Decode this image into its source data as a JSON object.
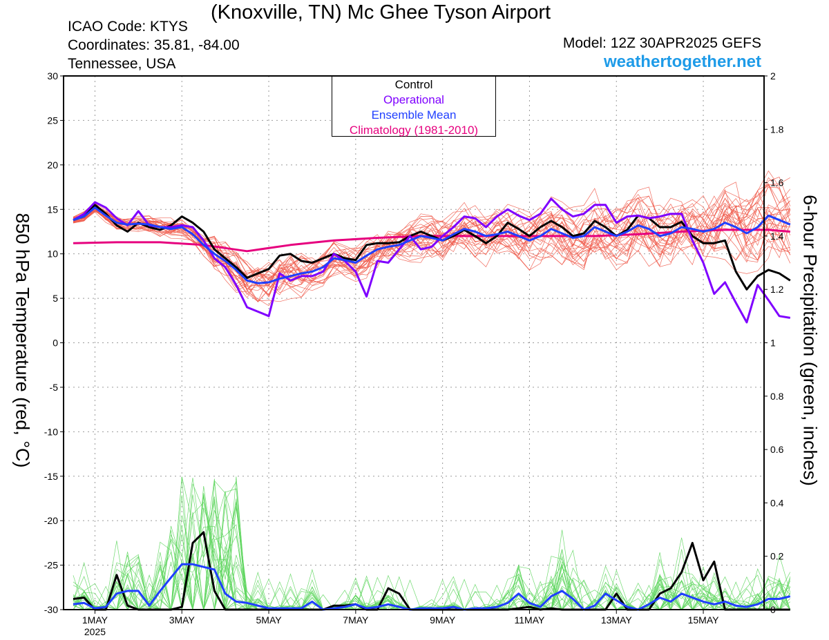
{
  "header": {
    "title": "(Knoxville, TN) Mc Ghee Tyson Airport",
    "icao": "ICAO Code: KTYS",
    "coordinates": "Coordinates: 35.81, -84.00",
    "region": "Tennessee, USA",
    "model": "Model: 12Z 30APR2025 GEFS",
    "site": "weathertogether.net"
  },
  "legend": {
    "entries": [
      {
        "label": "Control",
        "color": "#000000"
      },
      {
        "label": "Operational",
        "color": "#7f00ff"
      },
      {
        "label": "Ensemble Mean",
        "color": "#1f3fff"
      },
      {
        "label": "Climatology (1981-2010)",
        "color": "#e6007e"
      }
    ]
  },
  "chart_data": {
    "type": "line",
    "xlabel": "",
    "ylabel_left": "850 hPa Temperature (red, °C)",
    "ylabel_right": "6-hour Precipitation (green, inches)",
    "ylim_left": [
      -30,
      30
    ],
    "ylim_right": [
      0,
      2
    ],
    "yticks_left": [
      "30",
      "25",
      "20",
      "15",
      "10",
      "5",
      "0",
      "-5",
      "-10",
      "-15",
      "-20",
      "-25",
      "-30"
    ],
    "yticks_right": [
      "2",
      "1.8",
      "1.6",
      "1.4",
      "1.2",
      "1",
      "0.8",
      "0.6",
      "0.4",
      "0.2",
      "0"
    ],
    "x_tick_labels": [
      "1MAY",
      "3MAY",
      "5MAY",
      "7MAY",
      "9MAY",
      "11MAY",
      "13MAY",
      "15MAY"
    ],
    "x_tick_sublabel": "2025",
    "x_unit": "days since 30APR2025 12Z, 6-hourly",
    "x_range": [
      0,
      16.5
    ],
    "grid": true,
    "colors": {
      "members_temp": "#f05a4a",
      "members_precip": "#5fd65f",
      "control": "#000000",
      "operational": "#7f00ff",
      "ensemble_mean": "#1f3fff",
      "climatology": "#e6007e"
    },
    "temperature_series": [
      {
        "name": "Control",
        "x": [
          0,
          0.25,
          0.5,
          0.75,
          1,
          1.25,
          1.5,
          1.75,
          2,
          2.25,
          2.5,
          2.75,
          3,
          3.25,
          3.5,
          3.75,
          4,
          4.25,
          4.5,
          4.75,
          5,
          5.25,
          5.5,
          5.75,
          6,
          6.25,
          6.5,
          6.75,
          7,
          7.25,
          7.5,
          7.75,
          8,
          8.25,
          8.5,
          8.75,
          9,
          9.25,
          9.5,
          9.75,
          10,
          10.25,
          10.5,
          10.75,
          11,
          11.25,
          11.5,
          11.75,
          12,
          12.25,
          12.5,
          12.75,
          13,
          13.25,
          13.5,
          13.75,
          14,
          14.25,
          14.5,
          14.75,
          15,
          15.25,
          15.5,
          15.75,
          16,
          16.25,
          16.5
        ],
        "y": [
          13.8,
          14.2,
          15.5,
          14.5,
          13.2,
          12.5,
          13.5,
          13.0,
          12.7,
          13.2,
          14.2,
          13.5,
          12.5,
          10.5,
          9.5,
          8.5,
          7.3,
          7.8,
          8.3,
          9.8,
          10.0,
          9.2,
          9.0,
          9.5,
          10.0,
          9.5,
          9.3,
          11.0,
          11.2,
          11.2,
          11.3,
          12.0,
          12.5,
          12.0,
          11.5,
          12.0,
          12.7,
          12.0,
          11.2,
          12.0,
          13.5,
          12.8,
          12.0,
          13.0,
          13.7,
          13.0,
          12.0,
          12.3,
          13.7,
          13.0,
          12.0,
          12.7,
          14.3,
          14.0,
          13.0,
          13.0,
          13.6,
          12.0,
          11.2,
          11.2,
          11.5,
          8.0,
          6.0,
          7.5,
          8.2,
          7.8,
          7.0
        ]
      },
      {
        "name": "Operational",
        "x": [
          0,
          0.25,
          0.5,
          0.75,
          1,
          1.25,
          1.5,
          1.75,
          2,
          2.25,
          2.5,
          2.75,
          3,
          3.25,
          3.5,
          3.75,
          4,
          4.25,
          4.5,
          4.75,
          5,
          5.25,
          5.5,
          5.75,
          6,
          6.25,
          6.5,
          6.75,
          7,
          7.25,
          7.5,
          7.75,
          8,
          8.25,
          8.5,
          8.75,
          9,
          9.25,
          9.5,
          9.75,
          10,
          10.25,
          10.5,
          10.75,
          11,
          11.25,
          11.5,
          11.75,
          12,
          12.25,
          12.5,
          12.75,
          13,
          13.25,
          13.5,
          13.75,
          14,
          14.25,
          14.5,
          14.75,
          15,
          15.25,
          15.5,
          15.75,
          16,
          16.25,
          16.5
        ],
        "y": [
          13.8,
          14.5,
          15.8,
          15.2,
          14.0,
          13.2,
          14.8,
          13.2,
          13.0,
          13.0,
          13.2,
          13.0,
          11.5,
          9.5,
          8.5,
          6.5,
          4.0,
          3.5,
          3.0,
          7.8,
          7.0,
          7.5,
          7.5,
          8.0,
          10.0,
          9.2,
          8.0,
          5.2,
          9.2,
          9.0,
          10.5,
          12.0,
          10.5,
          10.8,
          12.0,
          13.0,
          14.2,
          14.0,
          13.0,
          14.2,
          15.0,
          14.3,
          13.8,
          14.5,
          16.2,
          15.0,
          14.2,
          14.5,
          15.5,
          15.5,
          13.5,
          14.2,
          14.3,
          14.0,
          14.2,
          14.5,
          14.5,
          11.5,
          9.0,
          5.5,
          6.8,
          4.5,
          2.3,
          6.5,
          4.8,
          3.0,
          2.8
        ]
      },
      {
        "name": "Ensemble Mean",
        "x": [
          0,
          0.25,
          0.5,
          0.75,
          1,
          1.25,
          1.5,
          1.75,
          2,
          2.25,
          2.5,
          2.75,
          3,
          3.25,
          3.5,
          3.75,
          4,
          4.25,
          4.5,
          4.75,
          5,
          5.25,
          5.5,
          5.75,
          6,
          6.25,
          6.5,
          6.75,
          7,
          7.25,
          7.5,
          7.75,
          8,
          8.25,
          8.5,
          8.75,
          9,
          9.25,
          9.5,
          9.75,
          10,
          10.25,
          10.5,
          10.75,
          11,
          11.25,
          11.5,
          11.75,
          12,
          12.25,
          12.5,
          12.75,
          13,
          13.25,
          13.5,
          13.75,
          14,
          14.25,
          14.5,
          14.75,
          15,
          15.25,
          15.5,
          15.75,
          16,
          16.25,
          16.5
        ],
        "y": [
          13.8,
          14.2,
          15.2,
          14.3,
          13.5,
          13.3,
          13.4,
          13.3,
          13.0,
          12.8,
          13.0,
          12.2,
          11.0,
          10.0,
          9.2,
          8.2,
          7.0,
          6.7,
          6.8,
          7.2,
          7.5,
          7.8,
          8.0,
          8.5,
          9.5,
          9.3,
          9.0,
          9.8,
          10.5,
          10.8,
          11.0,
          11.5,
          12.0,
          11.8,
          11.5,
          12.2,
          12.8,
          12.5,
          12.0,
          12.2,
          12.5,
          12.0,
          11.5,
          12.0,
          12.8,
          12.3,
          11.8,
          12.0,
          13.0,
          12.5,
          12.0,
          12.5,
          13.2,
          12.8,
          12.0,
          12.3,
          13.0,
          12.8,
          12.5,
          12.8,
          13.5,
          13.0,
          12.3,
          13.0,
          14.3,
          13.8,
          13.3
        ]
      },
      {
        "name": "Climatology (1981-2010)",
        "x": [
          0,
          1,
          2,
          3,
          4,
          5,
          6,
          7,
          8,
          9,
          10,
          11,
          12,
          13,
          14,
          15,
          16,
          16.5
        ],
        "y": [
          11.2,
          11.3,
          11.3,
          11.0,
          10.3,
          11.0,
          11.5,
          11.8,
          12.0,
          12.0,
          12.0,
          12.0,
          12.0,
          12.2,
          12.5,
          12.7,
          12.7,
          12.5
        ]
      }
    ],
    "precip_series": [
      {
        "name": "Control",
        "x": [
          0,
          0.25,
          0.5,
          0.75,
          1,
          1.25,
          1.5,
          1.75,
          2,
          2.25,
          2.5,
          2.75,
          3,
          3.25,
          3.5,
          3.75,
          4,
          4.25,
          4.5,
          4.75,
          5,
          5.25,
          5.5,
          5.75,
          6,
          6.25,
          6.5,
          6.75,
          7,
          7.25,
          7.5,
          7.75,
          8,
          8.25,
          8.5,
          8.75,
          9,
          9.25,
          9.5,
          9.75,
          10,
          10.25,
          10.5,
          10.75,
          11,
          11.25,
          11.5,
          11.75,
          12,
          12.25,
          12.5,
          12.75,
          13,
          13.25,
          13.5,
          13.75,
          14,
          14.25,
          14.5,
          14.75,
          15,
          15.25,
          15.5,
          15.75,
          16,
          16.25,
          16.5
        ],
        "y": [
          0.04,
          0.045,
          0.0,
          0.0,
          0.13,
          0.015,
          0.0,
          0.0,
          0.0,
          0.0,
          0.01,
          0.25,
          0.29,
          0.07,
          0.0,
          0.0,
          0.0,
          0.0,
          0.0,
          0.0,
          0.0,
          0.0,
          0.0,
          0.0,
          0.015,
          0.015,
          0.02,
          0.0,
          0.0,
          0.08,
          0.06,
          0.0,
          0.0,
          0.0,
          0.0,
          0.0,
          0.0,
          0.0,
          0.0,
          0.0,
          0.0,
          0.005,
          0.01,
          0.0,
          0.005,
          0.0,
          0.0,
          0.0,
          0.0,
          0.0,
          0.06,
          0.0,
          0.0,
          0.0,
          0.06,
          0.08,
          0.14,
          0.25,
          0.11,
          0.18,
          0.0,
          0.0,
          0.0,
          0.0,
          0.0,
          0.0,
          0.0
        ]
      },
      {
        "name": "Ensemble Mean",
        "x": [
          0,
          0.25,
          0.5,
          0.75,
          1,
          1.25,
          1.5,
          1.75,
          2,
          2.25,
          2.5,
          2.75,
          3,
          3.25,
          3.5,
          3.75,
          4,
          4.25,
          4.5,
          4.75,
          5,
          5.25,
          5.5,
          5.75,
          6,
          6.25,
          6.5,
          6.75,
          7,
          7.25,
          7.5,
          7.75,
          8,
          8.25,
          8.5,
          8.75,
          9,
          9.25,
          9.5,
          9.75,
          10,
          10.25,
          10.5,
          10.75,
          11,
          11.25,
          11.5,
          11.75,
          12,
          12.25,
          12.5,
          12.75,
          13,
          13.25,
          13.5,
          13.75,
          14,
          14.25,
          14.5,
          14.75,
          15,
          15.25,
          15.5,
          15.75,
          16,
          16.25,
          16.5
        ],
        "y": [
          0.02,
          0.025,
          0.005,
          0.01,
          0.06,
          0.07,
          0.07,
          0.015,
          0.07,
          0.12,
          0.17,
          0.17,
          0.16,
          0.15,
          0.06,
          0.03,
          0.025,
          0.015,
          0.005,
          0.005,
          0.005,
          0.005,
          0.03,
          0.0,
          0.005,
          0.01,
          0.02,
          0.005,
          0.01,
          0.02,
          0.01,
          0.0,
          0.005,
          0.005,
          0.005,
          0.01,
          0.0,
          0.005,
          0.005,
          0.01,
          0.025,
          0.06,
          0.025,
          0.01,
          0.05,
          0.07,
          0.04,
          0.0,
          0.015,
          0.06,
          0.035,
          0.01,
          0.0,
          0.02,
          0.045,
          0.03,
          0.06,
          0.045,
          0.03,
          0.02,
          0.03,
          0.015,
          0.01,
          0.02,
          0.04,
          0.04,
          0.05
        ]
      }
    ]
  }
}
